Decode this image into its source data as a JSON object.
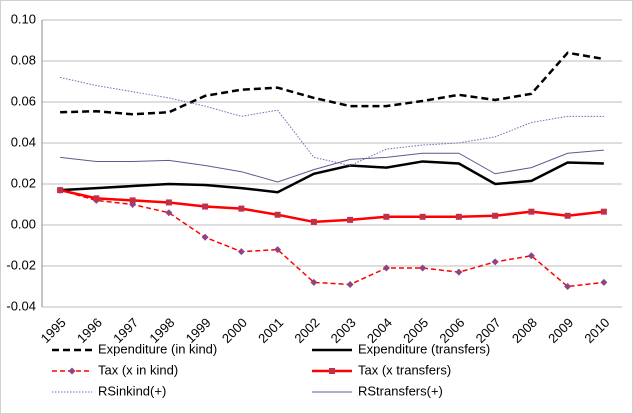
{
  "chart_data": {
    "type": "line",
    "categories": [
      "1995",
      "1996",
      "1997",
      "1998",
      "1999",
      "2000",
      "2001",
      "2002",
      "2003",
      "2004",
      "2005",
      "2006",
      "2007",
      "2008",
      "2009",
      "2010"
    ],
    "ylim": [
      -0.04,
      0.1
    ],
    "yticks": [
      {
        "value": -0.04,
        "label": "-0.04"
      },
      {
        "value": -0.02,
        "label": "-0.02"
      },
      {
        "value": 0,
        "label": "0.00"
      },
      {
        "value": 0.02,
        "label": "0.02"
      },
      {
        "value": 0.04,
        "label": "0.04"
      },
      {
        "value": 0.06,
        "label": "0.06"
      },
      {
        "value": 0.08,
        "label": "0.08"
      },
      {
        "value": 0.1,
        "label": "0.10"
      }
    ],
    "grid": true,
    "legend": "bottom",
    "series": [
      {
        "name": "Expenditure (in kind)",
        "color": "#000000",
        "width": 2.5,
        "dash": "7,4",
        "values": [
          0.055,
          0.0555,
          0.054,
          0.055,
          0.063,
          0.066,
          0.067,
          0.062,
          0.058,
          0.058,
          0.0605,
          0.0635,
          0.061,
          0.064,
          0.084,
          0.081
        ]
      },
      {
        "name": "Expenditure (transfers)",
        "color": "#000000",
        "width": 2.5,
        "values": [
          0.017,
          0.018,
          0.019,
          0.02,
          0.0195,
          0.018,
          0.016,
          0.025,
          0.029,
          0.028,
          0.031,
          0.03,
          0.02,
          0.0215,
          0.0305,
          0.03
        ]
      },
      {
        "name": "Tax (x in kind)",
        "color": "#ff0000",
        "width": 1.5,
        "dash": "5,3",
        "marker": "diamond",
        "marker_color": "#8e4585",
        "values": [
          0.017,
          0.012,
          0.01,
          0.006,
          -0.006,
          -0.013,
          -0.012,
          -0.028,
          -0.029,
          -0.021,
          -0.021,
          -0.023,
          -0.018,
          -0.015,
          -0.03,
          -0.028
        ]
      },
      {
        "name": "Tax (x transfers)",
        "color": "#ff0000",
        "width": 2.5,
        "marker": "square",
        "marker_color": "#c0304a",
        "values": [
          0.017,
          0.013,
          0.012,
          0.011,
          0.009,
          0.008,
          0.005,
          0.0015,
          0.0025,
          0.004,
          0.004,
          0.004,
          0.0045,
          0.0065,
          0.0045,
          0.0065
        ]
      },
      {
        "name": "RSinkind(+)",
        "color": "#6a6fb5",
        "width": 1,
        "dash": "1.5,1.5",
        "values": [
          0.072,
          0.068,
          0.065,
          0.062,
          0.058,
          0.053,
          0.056,
          0.033,
          0.029,
          0.037,
          0.039,
          0.04,
          0.043,
          0.05,
          0.053,
          0.053
        ]
      },
      {
        "name": "RStransfers(+)",
        "color": "#5c5c8e",
        "width": 1,
        "values": [
          0.033,
          0.031,
          0.031,
          0.0315,
          0.029,
          0.026,
          0.021,
          0.027,
          0.032,
          0.033,
          0.035,
          0.035,
          0.025,
          0.028,
          0.035,
          0.0365
        ]
      }
    ]
  }
}
